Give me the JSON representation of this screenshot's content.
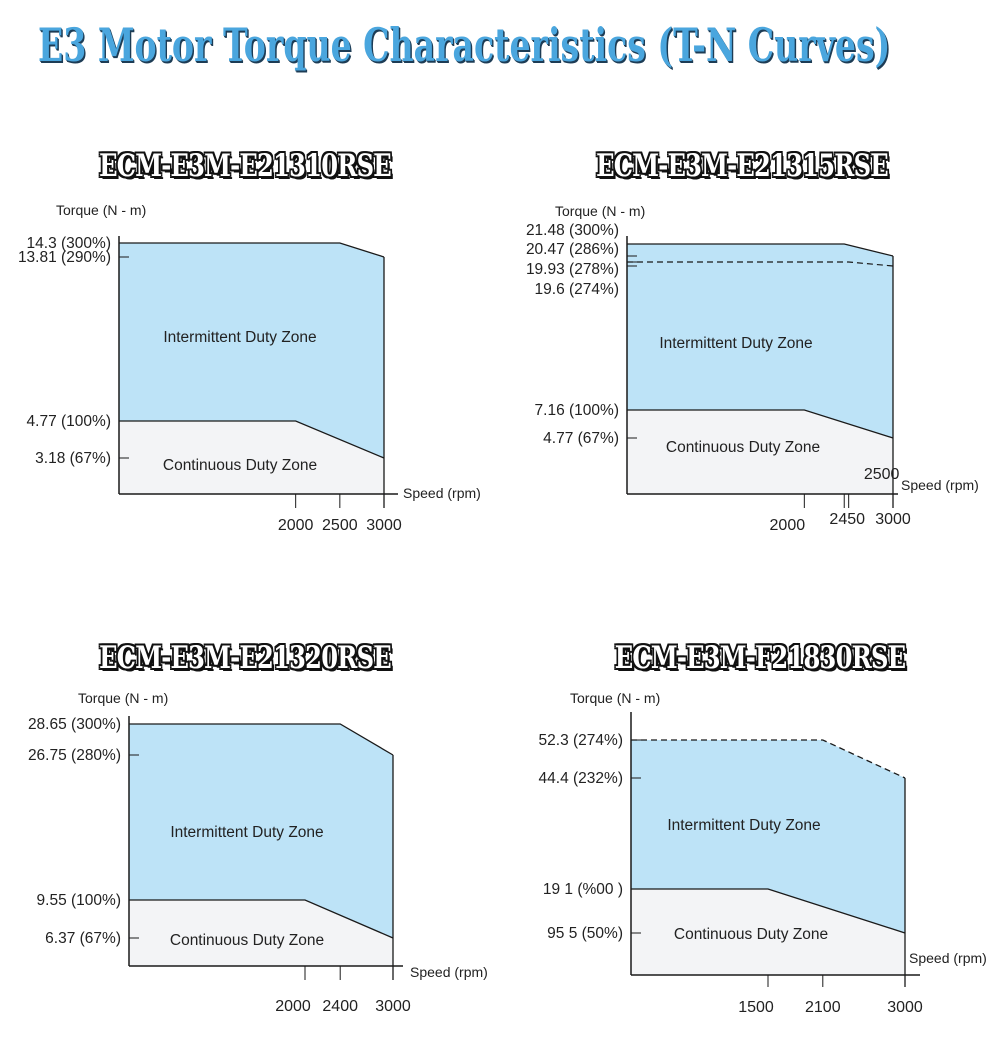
{
  "title": "E3 Motor Torque Characteristics (T-N Curves)",
  "colors": {
    "title": "#4aa6de",
    "intermittent_fill": "#bde3f7",
    "continuous_fill": "#f3f4f6",
    "line": "#1a1a1a"
  },
  "chart_data": [
    {
      "type": "area",
      "title": "ECM-E3M-E21310RSE",
      "ylabel": "Torque (N - m)",
      "xlabel": "Speed (rpm)",
      "xlim": [
        0,
        3000
      ],
      "x_ticks": [
        {
          "value": 2000,
          "label": "2000"
        },
        {
          "value": 2500,
          "label": "2500"
        },
        {
          "value": 3000,
          "label": "3000"
        }
      ],
      "y_ticks": [
        {
          "value": 14.3,
          "label": "14.3 (300%)"
        },
        {
          "value": 13.81,
          "label": "13.81 (290%)"
        },
        {
          "value": 4.77,
          "label": "4.77 (100%)"
        },
        {
          "value": 3.18,
          "label": "3.18 (67%)"
        }
      ],
      "series": [
        {
          "name": "Intermittent Duty Zone",
          "points": [
            [
              0,
              14.3
            ],
            [
              2500,
              14.3
            ],
            [
              3000,
              13.81
            ]
          ]
        },
        {
          "name": "Continuous Duty Zone",
          "points": [
            [
              0,
              4.77
            ],
            [
              2000,
              4.77
            ],
            [
              3000,
              3.18
            ]
          ]
        }
      ]
    },
    {
      "type": "area",
      "title": "ECM-E3M-E21315RSE",
      "ylabel": "Torque (N - m)",
      "xlabel": "Speed (rpm)",
      "xlim": [
        0,
        3000
      ],
      "x_ticks": [
        {
          "value": 2000,
          "label": "2000"
        },
        {
          "value": 2450,
          "label": "2450"
        },
        {
          "value": 2500,
          "label": "2500"
        },
        {
          "value": 3000,
          "label": "3000"
        }
      ],
      "y_ticks": [
        {
          "value": 21.48,
          "label": "21.48 (300%)"
        },
        {
          "value": 20.47,
          "label": "20.47 (286%)"
        },
        {
          "value": 19.93,
          "label": "19.93 (278%)"
        },
        {
          "value": 19.6,
          "label": "19.6 (274%)"
        },
        {
          "value": 7.16,
          "label": "7.16 (100%)"
        },
        {
          "value": 4.77,
          "label": "4.77 (67%)"
        }
      ],
      "series": [
        {
          "name": "Intermittent Duty Zone",
          "points": [
            [
              0,
              21.48
            ],
            [
              2450,
              21.48
            ],
            [
              3000,
              20.47
            ]
          ]
        },
        {
          "name": "Continuous Duty Zone",
          "points": [
            [
              0,
              7.16
            ],
            [
              2000,
              7.16
            ],
            [
              3000,
              4.77
            ]
          ]
        }
      ],
      "dashed": [
        [
          0,
          19.93
        ],
        [
          2500,
          19.93
        ],
        [
          3000,
          19.6
        ]
      ]
    },
    {
      "type": "area",
      "title": "ECM-E3M-E21320RSE",
      "ylabel": "Torque (N - m)",
      "xlabel": "Speed (rpm)",
      "xlim": [
        0,
        3000
      ],
      "x_ticks": [
        {
          "value": 2000,
          "label": "2000"
        },
        {
          "value": 2400,
          "label": "2400"
        },
        {
          "value": 3000,
          "label": "3000"
        }
      ],
      "y_ticks": [
        {
          "value": 28.65,
          "label": "28.65 (300%)"
        },
        {
          "value": 26.75,
          "label": "26.75 (280%)"
        },
        {
          "value": 9.55,
          "label": "9.55 (100%)"
        },
        {
          "value": 6.37,
          "label": "6.37 (67%)"
        }
      ],
      "series": [
        {
          "name": "Intermittent Duty Zone",
          "points": [
            [
              0,
              28.65
            ],
            [
              2400,
              28.65
            ],
            [
              3000,
              26.75
            ]
          ]
        },
        {
          "name": "Continuous Duty Zone",
          "points": [
            [
              0,
              9.55
            ],
            [
              2000,
              9.55
            ],
            [
              3000,
              6.37
            ]
          ]
        }
      ]
    },
    {
      "type": "area",
      "title": "ECM-E3M-F21830RSE",
      "ylabel": "Torque (N - m)",
      "xlabel": "Speed (rpm)",
      "xlim": [
        0,
        3000
      ],
      "x_ticks": [
        {
          "value": 1500,
          "label": "1500"
        },
        {
          "value": 2100,
          "label": "2100"
        },
        {
          "value": 3000,
          "label": "3000"
        }
      ],
      "y_ticks": [
        {
          "value": 52.3,
          "label": "52.3 (274%)"
        },
        {
          "value": 44.4,
          "label": "44.4 (232%)"
        },
        {
          "value": 19.1,
          "label": "19 1 (%00   )"
        },
        {
          "value": 9.55,
          "label": "95 5 (50%)"
        }
      ],
      "series": [
        {
          "name": "Intermittent Duty Zone",
          "points": [
            [
              0,
              52.3
            ],
            [
              2100,
              52.3
            ],
            [
              3000,
              44.4
            ]
          ]
        },
        {
          "name": "Continuous Duty Zone",
          "points": [
            [
              0,
              19.1
            ],
            [
              1500,
              19.1
            ],
            [
              3000,
              9.55
            ]
          ]
        }
      ],
      "dashed": [
        [
          0,
          52.3
        ],
        [
          2100,
          52.3
        ],
        [
          3000,
          44.4
        ]
      ]
    }
  ]
}
